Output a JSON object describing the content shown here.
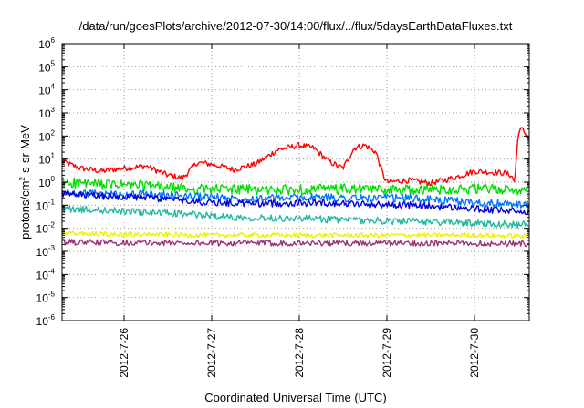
{
  "chart_data": {
    "type": "line",
    "title": "/data/run/goesPlots/archive/2012-07-30/14:00/flux/../flux/5daysEarthDataFluxes.txt",
    "xlabel": "Coordinated Universal Time (UTC)",
    "ylabel": {
      "prefix": "protons/cm",
      "sup": "2",
      "suffix": "-s-sr-MeV"
    },
    "y_scale": "log",
    "ylim": [
      1e-06,
      1000000.0
    ],
    "y_ticks": [
      {
        "base": "10",
        "exp": "-6",
        "value": 1e-06
      },
      {
        "base": "10",
        "exp": "-5",
        "value": 1e-05
      },
      {
        "base": "10",
        "exp": "-4",
        "value": 0.0001
      },
      {
        "base": "10",
        "exp": "-3",
        "value": 0.001
      },
      {
        "base": "10",
        "exp": "-2",
        "value": 0.01
      },
      {
        "base": "10",
        "exp": "-1",
        "value": 0.1
      },
      {
        "base": "10",
        "exp": "0",
        "value": 1
      },
      {
        "base": "10",
        "exp": "1",
        "value": 10
      },
      {
        "base": "10",
        "exp": "2",
        "value": 100
      },
      {
        "base": "10",
        "exp": "3",
        "value": 1000
      },
      {
        "base": "10",
        "exp": "4",
        "value": 10000
      },
      {
        "base": "10",
        "exp": "5",
        "value": 100000
      },
      {
        "base": "10",
        "exp": "6",
        "value": 1000000
      }
    ],
    "xlim": [
      "2012-07-25 07:00",
      "2012-07-30 15:00"
    ],
    "x_ticks": [
      {
        "label": "2012-7-26",
        "value": "2012-07-26 00:00"
      },
      {
        "label": "2012-7-27",
        "value": "2012-07-27 00:00"
      },
      {
        "label": "2012-7-28",
        "value": "2012-07-28 00:00"
      },
      {
        "label": "2012-7-29",
        "value": "2012-07-29 00:00"
      },
      {
        "label": "2012-7-30",
        "value": "2012-07-30 00:00"
      }
    ],
    "grid": true,
    "series": [
      {
        "color": "#ff0000",
        "noise": 0.25,
        "x": [
          "2012-07-25 07:00",
          "2012-07-25 12:00",
          "2012-07-25 18:00",
          "2012-07-26 00:00",
          "2012-07-26 06:00",
          "2012-07-26 12:00",
          "2012-07-26 16:00",
          "2012-07-26 20:00",
          "2012-07-27 00:00",
          "2012-07-27 06:00",
          "2012-07-27 12:00",
          "2012-07-27 18:00",
          "2012-07-28 00:00",
          "2012-07-28 04:00",
          "2012-07-28 08:00",
          "2012-07-28 12:00",
          "2012-07-28 15:00",
          "2012-07-28 18:00",
          "2012-07-28 21:00",
          "2012-07-28 23:00",
          "2012-07-29 00:00",
          "2012-07-29 06:00",
          "2012-07-29 12:00",
          "2012-07-29 18:00",
          "2012-07-30 00:00",
          "2012-07-30 08:00",
          "2012-07-30 10:00",
          "2012-07-30 11:00",
          "2012-07-30 12:00",
          "2012-07-30 13:00",
          "2012-07-30 15:00"
        ],
        "y": [
          8,
          4,
          3,
          4,
          5,
          2,
          1.5,
          7,
          6,
          3.5,
          6,
          25,
          40,
          30,
          8,
          4,
          30,
          40,
          20,
          2,
          1,
          1.2,
          0.9,
          1.5,
          3,
          2.5,
          2,
          1,
          150,
          200,
          80
        ]
      },
      {
        "color": "#00e000",
        "noise": 0.45,
        "x": [
          "2012-07-25 07:00",
          "2012-07-25 18:00",
          "2012-07-26 06:00",
          "2012-07-26 18:00",
          "2012-07-27 06:00",
          "2012-07-27 18:00",
          "2012-07-28 06:00",
          "2012-07-28 18:00",
          "2012-07-29 06:00",
          "2012-07-29 18:00",
          "2012-07-30 06:00",
          "2012-07-30 15:00"
        ],
        "y": [
          1,
          0.8,
          0.7,
          0.5,
          0.5,
          0.45,
          0.5,
          0.5,
          0.45,
          0.5,
          0.5,
          0.4
        ]
      },
      {
        "color": "#0077ff",
        "noise": 0.35,
        "x": [
          "2012-07-25 07:00",
          "2012-07-25 18:00",
          "2012-07-26 06:00",
          "2012-07-26 18:00",
          "2012-07-27 06:00",
          "2012-07-27 18:00",
          "2012-07-28 06:00",
          "2012-07-28 18:00",
          "2012-07-29 06:00",
          "2012-07-29 18:00",
          "2012-07-30 06:00",
          "2012-07-30 15:00"
        ],
        "y": [
          0.35,
          0.3,
          0.3,
          0.25,
          0.2,
          0.2,
          0.22,
          0.2,
          0.2,
          0.15,
          0.12,
          0.1
        ]
      },
      {
        "color": "#0000dd",
        "noise": 0.3,
        "x": [
          "2012-07-25 07:00",
          "2012-07-25 18:00",
          "2012-07-26 06:00",
          "2012-07-26 18:00",
          "2012-07-27 06:00",
          "2012-07-27 18:00",
          "2012-07-28 06:00",
          "2012-07-28 18:00",
          "2012-07-29 06:00",
          "2012-07-29 18:00",
          "2012-07-30 06:00",
          "2012-07-30 15:00"
        ],
        "y": [
          0.3,
          0.25,
          0.22,
          0.15,
          0.12,
          0.12,
          0.13,
          0.11,
          0.1,
          0.08,
          0.06,
          0.05
        ]
      },
      {
        "color": "#20b8a0",
        "noise": 0.3,
        "x": [
          "2012-07-25 07:00",
          "2012-07-25 18:00",
          "2012-07-26 06:00",
          "2012-07-26 18:00",
          "2012-07-27 06:00",
          "2012-07-27 18:00",
          "2012-07-28 06:00",
          "2012-07-28 18:00",
          "2012-07-29 06:00",
          "2012-07-29 18:00",
          "2012-07-30 06:00",
          "2012-07-30 15:00"
        ],
        "y": [
          0.07,
          0.06,
          0.05,
          0.04,
          0.03,
          0.028,
          0.025,
          0.022,
          0.02,
          0.018,
          0.016,
          0.014
        ]
      },
      {
        "color": "#f0f000",
        "noise": 0.2,
        "x": [
          "2012-07-25 07:00",
          "2012-07-26 00:00",
          "2012-07-27 00:00",
          "2012-07-28 00:00",
          "2012-07-29 00:00",
          "2012-07-30 00:00",
          "2012-07-30 15:00"
        ],
        "y": [
          0.006,
          0.0055,
          0.005,
          0.005,
          0.005,
          0.005,
          0.0045
        ]
      },
      {
        "color": "#993377",
        "noise": 0.25,
        "x": [
          "2012-07-25 07:00",
          "2012-07-26 00:00",
          "2012-07-27 00:00",
          "2012-07-28 00:00",
          "2012-07-29 00:00",
          "2012-07-30 00:00",
          "2012-07-30 15:00"
        ],
        "y": [
          0.0025,
          0.0024,
          0.0023,
          0.0023,
          0.0023,
          0.0022,
          0.0022
        ]
      }
    ]
  }
}
